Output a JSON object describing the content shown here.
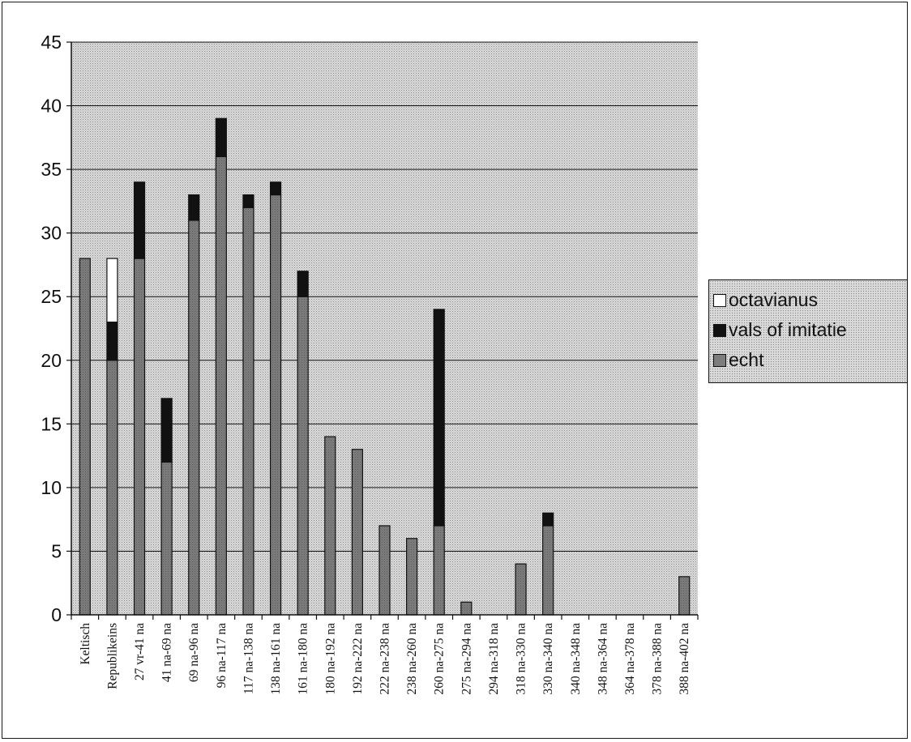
{
  "chart_data": {
    "type": "bar",
    "stacked": true,
    "categories": [
      "Keltisch",
      "Republikeins",
      "27 vr-41 na",
      "41 na-69 na",
      "69 na-96 na",
      "96 na-117 na",
      "117 na-138 na",
      "138 na-161 na",
      "161 na-180 na",
      "180 na-192 na",
      "192 na-222 na",
      "222 na-238 na",
      "238 na-260 na",
      "260 na-275 na",
      "275 na-294 na",
      "294 na-318 na",
      "318 na-330 na",
      "330 na-340 na",
      "340 na-348 na",
      "348 na-364 na",
      "364 na-378 na",
      "378 na-388 na",
      "388 na-402 na"
    ],
    "series": [
      {
        "name": "echt",
        "color": "#7d7d7d",
        "values": [
          28,
          20,
          28,
          12,
          31,
          36,
          32,
          33,
          25,
          14,
          13,
          7,
          6,
          7,
          1,
          0,
          4,
          7,
          0,
          0,
          0,
          0,
          3
        ]
      },
      {
        "name": "vals of imitatie",
        "color": "#111111",
        "values": [
          0,
          3,
          6,
          5,
          2,
          3,
          1,
          1,
          2,
          0,
          0,
          0,
          0,
          17,
          0,
          0,
          0,
          1,
          0,
          0,
          0,
          0,
          0
        ]
      },
      {
        "name": "octavianus",
        "color": "#ffffff",
        "values": [
          0,
          5,
          0,
          0,
          0,
          0,
          0,
          0,
          0,
          0,
          0,
          0,
          0,
          0,
          0,
          0,
          0,
          0,
          0,
          0,
          0,
          0,
          0
        ]
      }
    ],
    "legend_order": [
      "octavianus",
      "vals of imitatie",
      "echt"
    ],
    "yticks": [
      0,
      5,
      10,
      15,
      20,
      25,
      30,
      35,
      40,
      45
    ],
    "ylim": [
      0,
      45
    ],
    "grid": true,
    "legend_position": "right",
    "title": "",
    "xlabel": "",
    "ylabel": "",
    "colors": {
      "plot_background": "#d6d6d6",
      "grid": "#111111",
      "axis": "#111111"
    }
  }
}
